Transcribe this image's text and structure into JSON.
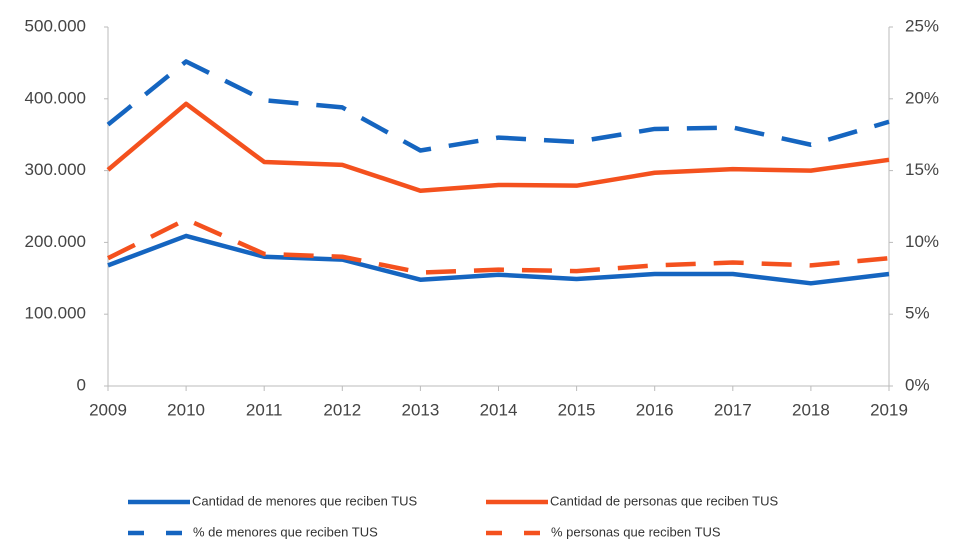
{
  "chart_data": {
    "type": "line",
    "x": [
      2009,
      2010,
      2011,
      2012,
      2013,
      2014,
      2015,
      2016,
      2017,
      2018,
      2019
    ],
    "xlim": [
      2009,
      2019
    ],
    "xticks": [
      2009,
      2010,
      2011,
      2012,
      2013,
      2014,
      2015,
      2016,
      2017,
      2018,
      2019
    ],
    "ylim": [
      0,
      500000
    ],
    "yticks": [
      0,
      {
        "value": 100000,
        "label": "100.000"
      },
      {
        "value": 200000,
        "label": "200.000"
      },
      {
        "value": 300000,
        "label": "300.000"
      },
      {
        "value": 400000,
        "label": "400.000"
      },
      {
        "value": 500000,
        "label": "500.000"
      }
    ],
    "y2lim": [
      0,
      25
    ],
    "y2ticks": [
      {
        "value": 0,
        "label": "0%"
      },
      {
        "value": 5,
        "label": "5%"
      },
      {
        "value": 10,
        "label": "10%"
      },
      {
        "value": 15,
        "label": "15%"
      },
      {
        "value": 20,
        "label": "20%"
      },
      {
        "value": 25,
        "label": "25%"
      }
    ],
    "grid": false,
    "legend": "bottom",
    "series": [
      {
        "name": "Cantidad de menores que reciben TUS",
        "color": "#1565c0",
        "style": "solid",
        "values": [
          168000,
          209000,
          180000,
          176000,
          148000,
          155000,
          149000,
          156000,
          156000,
          143000,
          156000
        ]
      },
      {
        "name": "Cantidad de personas que reciben TUS",
        "color": "#f4511e",
        "style": "solid",
        "values": [
          301000,
          393000,
          312000,
          308000,
          272000,
          280000,
          279000,
          297000,
          302000,
          300000,
          315000
        ]
      },
      {
        "name": "% de menores que reciben TUS",
        "color": "#1565c0",
        "style": "dashed",
        "axis": "y2",
        "values": [
          18.2,
          22.6,
          19.9,
          19.4,
          16.4,
          17.3,
          17.0,
          17.9,
          18.0,
          16.8,
          18.4
        ]
      },
      {
        "name": "% personas que reciben TUS",
        "color": "#f4511e",
        "style": "dashed",
        "axis": "y2",
        "values": [
          8.9,
          11.6,
          9.2,
          9.0,
          7.9,
          8.1,
          8.0,
          8.4,
          8.6,
          8.4,
          8.9
        ]
      }
    ]
  }
}
